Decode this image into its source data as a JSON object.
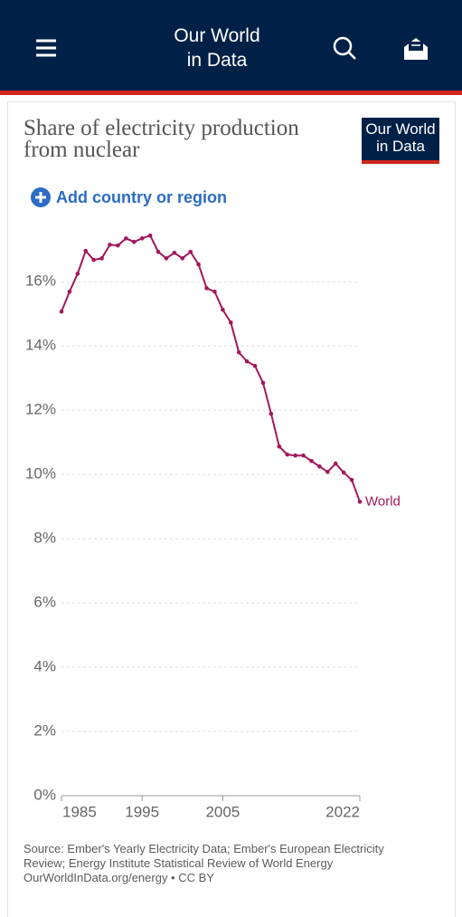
{
  "header": {
    "logo_line1": "Our World",
    "logo_line2": "in Data"
  },
  "controls": {
    "add_country": "Add country or region"
  },
  "chart_data": {
    "type": "line",
    "title": "Share of electricity production from nuclear",
    "logo_line1": "Our World",
    "logo_line2": "in Data",
    "x": [
      1985,
      1986,
      1987,
      1988,
      1989,
      1990,
      1991,
      1992,
      1993,
      1994,
      1995,
      1996,
      1997,
      1998,
      1999,
      2000,
      2001,
      2002,
      2003,
      2004,
      2005,
      2006,
      2007,
      2008,
      2009,
      2010,
      2011,
      2012,
      2013,
      2014,
      2015,
      2016,
      2017,
      2018,
      2019,
      2020,
      2021,
      2022
    ],
    "series": [
      {
        "name": "World",
        "color": "#a2185b",
        "values": [
          15.07,
          15.69,
          16.25,
          16.96,
          16.68,
          16.73,
          17.15,
          17.13,
          17.35,
          17.24,
          17.35,
          17.44,
          16.93,
          16.73,
          16.9,
          16.73,
          16.93,
          16.54,
          15.8,
          15.69,
          15.13,
          14.73,
          13.8,
          13.52,
          13.38,
          12.85,
          11.89,
          10.87,
          10.62,
          10.59,
          10.59,
          10.42,
          10.25,
          10.08,
          10.34,
          10.06,
          9.83,
          9.15
        ]
      }
    ],
    "xlim": [
      1985,
      2022
    ],
    "xticks": [
      1985,
      1995,
      2005,
      2022
    ],
    "ylim": [
      0,
      17.5
    ],
    "yticks": [
      {
        "value": 0,
        "label": "0%"
      },
      {
        "value": 2,
        "label": "2%"
      },
      {
        "value": 4,
        "label": "4%"
      },
      {
        "value": 6,
        "label": "6%"
      },
      {
        "value": 8,
        "label": "8%"
      },
      {
        "value": 10,
        "label": "10%"
      },
      {
        "value": 12,
        "label": "12%"
      },
      {
        "value": 14,
        "label": "14%"
      },
      {
        "value": 16,
        "label": "16%"
      }
    ],
    "grid": true,
    "source": "Source: Ember's Yearly Electricity Data; Ember's European Electricity Review; Energy Institute Statistical Review of World Energy",
    "license": "OurWorldInData.org/energy • CC BY"
  }
}
